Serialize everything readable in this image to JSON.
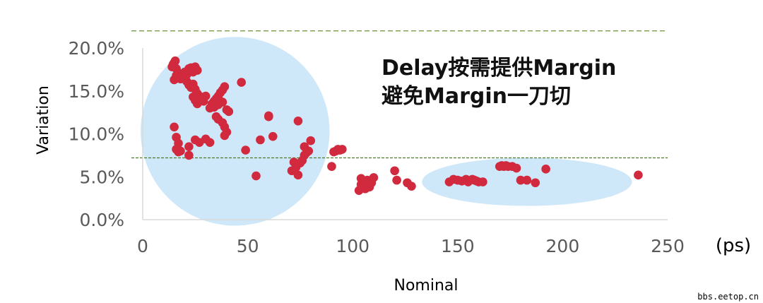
{
  "chart_data": {
    "type": "scatter",
    "xlabel": "Nominal",
    "ylabel": "Variation",
    "x_unit_label": "(ps)",
    "xlim": [
      0,
      250
    ],
    "ylim": [
      0,
      0.2
    ],
    "x_ticks": [
      "0",
      "50",
      "100",
      "150",
      "200",
      "250"
    ],
    "y_ticks": [
      "0.0%",
      "5.0%",
      "10.0%",
      "15.0%",
      "20.0%"
    ],
    "grid": false,
    "point_color": "#d1293d",
    "highlight_color": "#cfe8f9",
    "reference_lines": [
      {
        "y": 0.22,
        "color": "#7a9a4a",
        "style": "dashed"
      },
      {
        "y": 0.072,
        "color": "#4e7a2a",
        "style": "dashed"
      }
    ],
    "highlight_regions": [
      {
        "shape": "circle",
        "cx": 44,
        "cy": 0.103,
        "rx": 45,
        "ry": 0.11
      },
      {
        "shape": "ellipse",
        "cx": 183,
        "cy": 0.044,
        "rx": 50,
        "ry": 0.028
      }
    ],
    "annotations": [
      "Delay按需提供Margin",
      "避免Margin一刀切"
    ],
    "series": [
      {
        "points": [
          [
            14,
            0.178
          ],
          [
            14.5,
            0.181
          ],
          [
            15,
            0.183
          ],
          [
            15.5,
            0.185
          ],
          [
            16,
            0.176
          ],
          [
            15,
            0.163
          ],
          [
            16,
            0.168
          ],
          [
            17,
            0.171
          ],
          [
            18,
            0.164
          ],
          [
            19,
            0.167
          ],
          [
            20,
            0.172
          ],
          [
            21,
            0.169
          ],
          [
            22,
            0.176
          ],
          [
            23,
            0.177
          ],
          [
            24,
            0.172
          ],
          [
            25,
            0.178
          ],
          [
            26,
            0.174
          ],
          [
            21,
            0.161
          ],
          [
            22,
            0.157
          ],
          [
            23,
            0.154
          ],
          [
            24,
            0.158
          ],
          [
            25,
            0.152
          ],
          [
            26,
            0.147
          ],
          [
            27,
            0.144
          ],
          [
            28,
            0.141
          ],
          [
            29,
            0.138
          ],
          [
            30,
            0.144
          ],
          [
            24,
            0.143
          ],
          [
            25,
            0.139
          ],
          [
            26,
            0.135
          ],
          [
            27,
            0.14
          ],
          [
            32,
            0.13
          ],
          [
            33,
            0.135
          ],
          [
            34,
            0.138
          ],
          [
            35,
            0.141
          ],
          [
            36,
            0.144
          ],
          [
            37,
            0.148
          ],
          [
            38,
            0.151
          ],
          [
            39,
            0.155
          ],
          [
            34,
            0.131
          ],
          [
            36,
            0.134
          ],
          [
            38,
            0.137
          ],
          [
            40,
            0.128
          ],
          [
            41,
            0.126
          ],
          [
            35,
            0.12
          ],
          [
            36,
            0.117
          ],
          [
            38,
            0.113
          ],
          [
            39,
            0.108
          ],
          [
            40,
            0.102
          ],
          [
            39,
            0.098
          ],
          [
            15,
            0.108
          ],
          [
            16,
            0.096
          ],
          [
            17,
            0.089
          ],
          [
            16,
            0.082
          ],
          [
            17,
            0.079
          ],
          [
            18,
            0.08
          ],
          [
            22,
            0.075
          ],
          [
            22,
            0.085
          ],
          [
            25,
            0.093
          ],
          [
            27,
            0.09
          ],
          [
            30,
            0.094
          ],
          [
            32,
            0.09
          ],
          [
            47,
            0.16
          ],
          [
            49,
            0.081
          ],
          [
            54,
            0.051
          ],
          [
            56,
            0.093
          ],
          [
            60,
            0.121
          ],
          [
            60,
            0.12
          ],
          [
            62,
            0.097
          ],
          [
            71,
            0.057
          ],
          [
            72,
            0.067
          ],
          [
            73,
            0.061
          ],
          [
            74,
            0.052
          ],
          [
            74,
            0.115
          ],
          [
            75,
            0.066
          ],
          [
            76,
            0.069
          ],
          [
            77,
            0.085
          ],
          [
            77,
            0.075
          ],
          [
            78,
            0.078
          ],
          [
            79,
            0.08
          ],
          [
            80,
            0.092
          ],
          [
            90,
            0.062
          ],
          [
            91,
            0.079
          ],
          [
            92,
            0.08
          ],
          [
            93,
            0.082
          ],
          [
            94,
            0.081
          ],
          [
            95,
            0.082
          ],
          [
            103,
            0.034
          ],
          [
            104,
            0.041
          ],
          [
            104,
            0.048
          ],
          [
            105,
            0.038
          ],
          [
            106,
            0.044
          ],
          [
            106,
            0.036
          ],
          [
            107,
            0.04
          ],
          [
            107,
            0.046
          ],
          [
            108,
            0.042
          ],
          [
            108,
            0.038
          ],
          [
            109,
            0.043
          ],
          [
            110,
            0.049
          ],
          [
            120,
            0.057
          ],
          [
            121,
            0.046
          ],
          [
            126,
            0.043
          ],
          [
            128,
            0.039
          ],
          [
            146,
            0.044
          ],
          [
            148,
            0.047
          ],
          [
            150,
            0.046
          ],
          [
            152,
            0.045
          ],
          [
            154,
            0.047
          ],
          [
            155,
            0.044
          ],
          [
            157,
            0.047
          ],
          [
            158,
            0.046
          ],
          [
            159,
            0.045
          ],
          [
            160,
            0.044
          ],
          [
            162,
            0.044
          ],
          [
            170,
            0.062
          ],
          [
            171,
            0.063
          ],
          [
            172,
            0.062
          ],
          [
            173,
            0.063
          ],
          [
            174,
            0.062
          ],
          [
            176,
            0.062
          ],
          [
            178,
            0.06
          ],
          [
            180,
            0.046
          ],
          [
            183,
            0.046
          ],
          [
            187,
            0.043
          ],
          [
            192,
            0.059
          ],
          [
            236,
            0.052
          ]
        ]
      }
    ]
  },
  "watermark": "bbs.eetop.cn"
}
